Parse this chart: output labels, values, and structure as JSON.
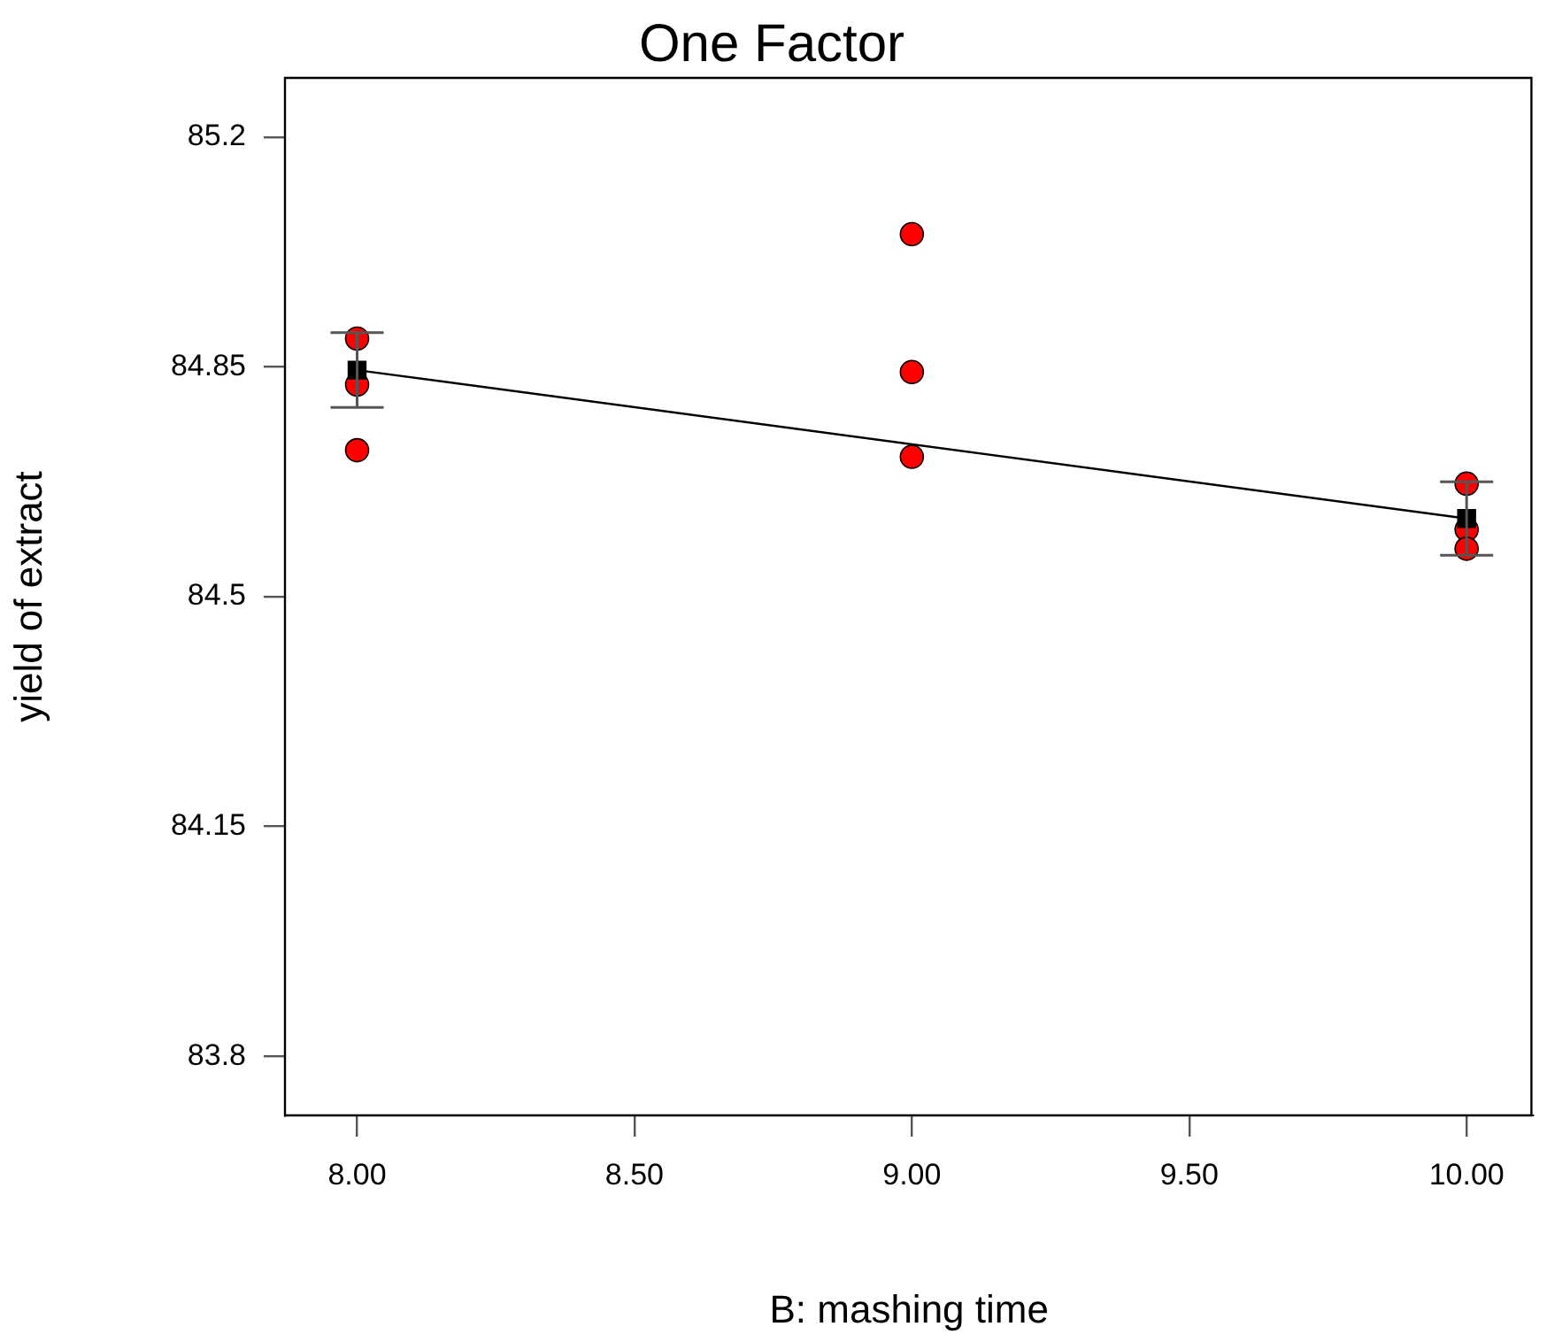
{
  "chart_data": {
    "type": "scatter",
    "title": "One Factor",
    "xlabel": "B: mashing time",
    "ylabel": "yield of extract",
    "xlim": [
      7.87,
      10.12
    ],
    "xticks": [
      {
        "value": 8,
        "label": "8.00"
      },
      {
        "value": 8.5,
        "label": "8.50"
      },
      {
        "value": 9,
        "label": "9.00"
      },
      {
        "value": 9.5,
        "label": "9.50"
      },
      {
        "value": 10,
        "label": "10.00"
      }
    ],
    "ylim": [
      83.71,
      85.29
    ],
    "yticks": [
      83.8,
      84.15,
      84.5,
      84.85,
      85.2
    ],
    "grid": false,
    "legend": false,
    "series": [
      {
        "type": "line",
        "color": "#000000",
        "marker": "none",
        "line_style": "solid",
        "x": [
          8,
          10
        ],
        "values": [
          84.845,
          84.619
        ]
      },
      {
        "color": "#000000",
        "marker": "square",
        "x": [
          8,
          10
        ],
        "values": [
          84.845,
          84.619
        ],
        "errors": [
          0.057,
          0.056
        ]
      },
      {
        "color": "#ff0000",
        "marker": "circle",
        "x": [
          8,
          8,
          8,
          9,
          9,
          9,
          10,
          10,
          10
        ],
        "values": [
          84.893,
          84.823,
          84.723,
          85.052,
          84.842,
          84.713,
          84.672,
          84.602,
          84.573
        ]
      }
    ]
  }
}
